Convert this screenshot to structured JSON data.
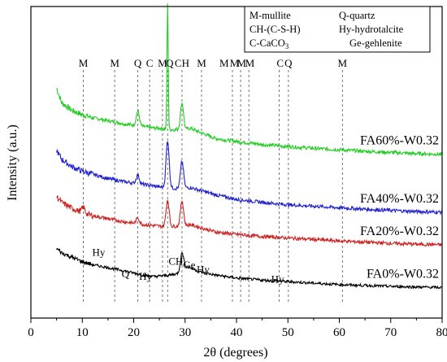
{
  "chart_data": {
    "type": "line",
    "xlabel": "2θ (degrees)",
    "ylabel": "Intensity (a.u.)",
    "xlim": [
      0,
      80
    ],
    "xticks": [
      0,
      10,
      20,
      30,
      40,
      50,
      60,
      70,
      80
    ],
    "x_start": 5,
    "legend": {
      "placement": "top-right",
      "rows": [
        [
          "M-mullite",
          "Q-quartz"
        ],
        [
          "CH-(C-S-H)",
          "Hy-hydrotalcite"
        ],
        [
          "C-CaCO",
          "Ge-gehlenite"
        ]
      ],
      "subscript": "3"
    },
    "reference_lines": [
      10.2,
      16.3,
      20.8,
      23.1,
      25.6,
      26.6,
      29.4,
      33.2,
      39.2,
      40.8,
      42.4,
      48.3,
      50.1,
      60.6
    ],
    "top_labels": [
      {
        "x": 10.2,
        "label": "M"
      },
      {
        "x": 16.3,
        "label": "M"
      },
      {
        "x": 20.8,
        "label": "Q"
      },
      {
        "x": 23.1,
        "label": "C"
      },
      {
        "x": 25.6,
        "label": "M"
      },
      {
        "x": 27.0,
        "label": "Q"
      },
      {
        "x": 29.4,
        "label": "CH"
      },
      {
        "x": 33.2,
        "label": "M"
      },
      {
        "x": 37.6,
        "label": "M"
      },
      {
        "x": 39.6,
        "label": "M"
      },
      {
        "x": 41.0,
        "label": "M"
      },
      {
        "x": 42.6,
        "label": "M"
      },
      {
        "x": 48.5,
        "label": "C"
      },
      {
        "x": 50.1,
        "label": "Q"
      },
      {
        "x": 60.6,
        "label": "M"
      }
    ],
    "series": [
      {
        "name": "FA60%-W0.32",
        "color": "#22cc22",
        "peaks": [
          [
            20.8,
            0.5
          ],
          [
            26.6,
            4.2
          ],
          [
            29.4,
            0.9
          ]
        ],
        "points": [
          [
            5,
            6.35
          ],
          [
            6,
            5.85
          ],
          [
            8,
            5.6
          ],
          [
            10,
            5.45
          ],
          [
            12,
            5.35
          ],
          [
            15,
            5.25
          ],
          [
            18,
            5.15
          ],
          [
            20,
            5.1
          ],
          [
            22,
            5.05
          ],
          [
            24,
            5.0
          ],
          [
            25,
            5.0
          ],
          [
            27,
            4.95
          ],
          [
            28.5,
            4.95
          ],
          [
            30,
            4.95
          ],
          [
            31,
            5.0
          ],
          [
            33,
            4.85
          ],
          [
            36,
            4.65
          ],
          [
            40,
            4.55
          ],
          [
            45,
            4.45
          ],
          [
            50,
            4.38
          ],
          [
            55,
            4.32
          ],
          [
            60,
            4.27
          ],
          [
            65,
            4.22
          ],
          [
            70,
            4.18
          ],
          [
            75,
            4.14
          ],
          [
            80,
            4.12
          ]
        ]
      },
      {
        "name": "FA40%-W0.32",
        "color": "#2222cc",
        "peaks": [
          [
            20.8,
            0.3
          ],
          [
            26.6,
            1.6
          ],
          [
            29.4,
            0.9
          ]
        ],
        "points": [
          [
            5,
            4.25
          ],
          [
            6,
            3.95
          ],
          [
            8,
            3.7
          ],
          [
            10,
            3.55
          ],
          [
            12,
            3.45
          ],
          [
            15,
            3.3
          ],
          [
            18,
            3.2
          ],
          [
            20,
            3.15
          ],
          [
            22,
            3.1
          ],
          [
            24,
            3.05
          ],
          [
            25,
            3.02
          ],
          [
            27,
            2.98
          ],
          [
            28.5,
            2.97
          ],
          [
            30,
            2.98
          ],
          [
            31,
            3.0
          ],
          [
            33,
            2.9
          ],
          [
            36,
            2.75
          ],
          [
            40,
            2.6
          ],
          [
            45,
            2.5
          ],
          [
            50,
            2.42
          ],
          [
            55,
            2.37
          ],
          [
            60,
            2.32
          ],
          [
            65,
            2.27
          ],
          [
            70,
            2.23
          ],
          [
            75,
            2.19
          ],
          [
            80,
            2.17
          ]
        ]
      },
      {
        "name": "FA20%-W0.32",
        "color": "#cc2222",
        "peaks": [
          [
            10.2,
            0.2
          ],
          [
            20.8,
            0.2
          ],
          [
            26.6,
            0.9
          ],
          [
            29.4,
            0.85
          ]
        ],
        "points": [
          [
            5,
            2.7
          ],
          [
            6,
            2.5
          ],
          [
            8,
            2.3
          ],
          [
            10,
            2.15
          ],
          [
            12,
            2.05
          ],
          [
            15,
            1.95
          ],
          [
            18,
            1.85
          ],
          [
            20,
            1.8
          ],
          [
            22,
            1.75
          ],
          [
            24,
            1.72
          ],
          [
            25,
            1.7
          ],
          [
            27,
            1.68
          ],
          [
            28.5,
            1.7
          ],
          [
            30,
            1.72
          ],
          [
            31,
            1.75
          ],
          [
            33,
            1.65
          ],
          [
            36,
            1.5
          ],
          [
            40,
            1.42
          ],
          [
            45,
            1.35
          ],
          [
            50,
            1.3
          ],
          [
            55,
            1.25
          ],
          [
            60,
            1.2
          ],
          [
            65,
            1.16
          ],
          [
            70,
            1.12
          ],
          [
            75,
            1.09
          ],
          [
            80,
            1.07
          ]
        ]
      },
      {
        "name": "FA0%-W0.32",
        "color": "#000000",
        "peaks": [
          [
            29.4,
            0.55
          ]
        ],
        "points": [
          [
            5,
            0.95
          ],
          [
            6,
            0.8
          ],
          [
            8,
            0.65
          ],
          [
            10,
            0.5
          ],
          [
            12,
            0.4
          ],
          [
            15,
            0.3
          ],
          [
            18,
            0.2
          ],
          [
            20,
            0.12
          ],
          [
            22,
            0.05
          ],
          [
            24,
            0.0
          ],
          [
            25,
            0.02
          ],
          [
            27,
            0.05
          ],
          [
            28.5,
            0.1
          ],
          [
            30,
            0.35
          ],
          [
            31,
            0.3
          ],
          [
            33,
            0.15
          ],
          [
            36,
            0.05
          ],
          [
            40,
            -0.05
          ],
          [
            45,
            -0.12
          ],
          [
            50,
            -0.17
          ],
          [
            55,
            -0.22
          ],
          [
            60,
            -0.27
          ],
          [
            65,
            -0.3
          ],
          [
            70,
            -0.33
          ],
          [
            75,
            -0.35
          ],
          [
            80,
            -0.37
          ]
        ]
      }
    ],
    "annotations": [
      {
        "x": 13.2,
        "y": 0.7,
        "label": "Hy"
      },
      {
        "x": 18.4,
        "y": -0.03,
        "label": "Q"
      },
      {
        "x": 22.3,
        "y": -0.11,
        "label": "Hy"
      },
      {
        "x": 28.2,
        "y": 0.4,
        "label": "CH"
      },
      {
        "x": 30.8,
        "y": 0.27,
        "label": "Ge"
      },
      {
        "x": 33.5,
        "y": 0.13,
        "label": "Hy"
      },
      {
        "x": 48.0,
        "y": -0.2,
        "label": "Hy"
      }
    ]
  }
}
